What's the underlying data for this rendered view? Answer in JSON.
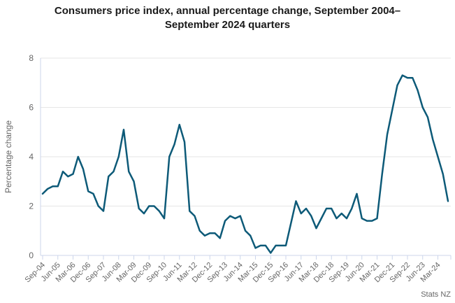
{
  "title": "Consumers price index, annual percentage change, September 2004–September 2024 quarters",
  "credits": "Stats NZ",
  "colors": {
    "line": "#0d5a78",
    "grid": "#e6e6e6",
    "axis": "#ccd6eb",
    "labels": "#666666",
    "title": "#1a1a1a",
    "background": "#ffffff"
  },
  "chart_data": {
    "type": "line",
    "title": "Consumers price index, annual percentage change, September 2004–September 2024 quarters",
    "xlabel": "",
    "ylabel": "Percentage change",
    "ylim": [
      0,
      8
    ],
    "yticks": [
      0,
      2,
      4,
      6,
      8
    ],
    "grid": true,
    "legend": false,
    "xtick_every": 3,
    "x": [
      "Sep-04",
      "Dec-04",
      "Mar-05",
      "Jun-05",
      "Sep-05",
      "Dec-05",
      "Mar-06",
      "Jun-06",
      "Sep-06",
      "Dec-06",
      "Mar-07",
      "Jun-07",
      "Sep-07",
      "Dec-07",
      "Mar-08",
      "Jun-08",
      "Sep-08",
      "Dec-08",
      "Mar-09",
      "Jun-09",
      "Sep-09",
      "Dec-09",
      "Mar-10",
      "Jun-10",
      "Sep-10",
      "Dec-10",
      "Mar-11",
      "Jun-11",
      "Sep-11",
      "Dec-11",
      "Mar-12",
      "Jun-12",
      "Sep-12",
      "Dec-12",
      "Mar-13",
      "Jun-13",
      "Sep-13",
      "Dec-13",
      "Mar-14",
      "Jun-14",
      "Sep-14",
      "Dec-14",
      "Mar-15",
      "Jun-15",
      "Sep-15",
      "Dec-15",
      "Mar-16",
      "Jun-16",
      "Sep-16",
      "Dec-16",
      "Mar-17",
      "Jun-17",
      "Sep-17",
      "Dec-17",
      "Mar-18",
      "Jun-18",
      "Sep-18",
      "Dec-18",
      "Mar-19",
      "Jun-19",
      "Sep-19",
      "Dec-19",
      "Mar-20",
      "Jun-20",
      "Sep-20",
      "Dec-20",
      "Mar-21",
      "Jun-21",
      "Sep-21",
      "Dec-21",
      "Mar-22",
      "Jun-22",
      "Sep-22",
      "Dec-22",
      "Mar-23",
      "Jun-23",
      "Sep-23",
      "Dec-23",
      "Mar-24",
      "Jun-24",
      "Sep-24"
    ],
    "values": [
      2.5,
      2.7,
      2.8,
      2.8,
      3.4,
      3.2,
      3.3,
      4.0,
      3.5,
      2.6,
      2.5,
      2.0,
      1.8,
      3.2,
      3.4,
      4.0,
      5.1,
      3.4,
      3.0,
      1.9,
      1.7,
      2.0,
      2.0,
      1.8,
      1.5,
      4.0,
      4.5,
      5.3,
      4.6,
      1.8,
      1.6,
      1.0,
      0.8,
      0.9,
      0.9,
      0.7,
      1.4,
      1.6,
      1.5,
      1.6,
      1.0,
      0.8,
      0.3,
      0.4,
      0.4,
      0.1,
      0.4,
      0.4,
      0.4,
      1.3,
      2.2,
      1.7,
      1.9,
      1.6,
      1.1,
      1.5,
      1.9,
      1.9,
      1.5,
      1.7,
      1.5,
      1.9,
      2.5,
      1.5,
      1.4,
      1.4,
      1.5,
      3.3,
      4.9,
      5.9,
      6.9,
      7.3,
      7.2,
      7.2,
      6.7,
      6.0,
      5.6,
      4.7,
      4.0,
      3.3,
      2.2
    ]
  }
}
